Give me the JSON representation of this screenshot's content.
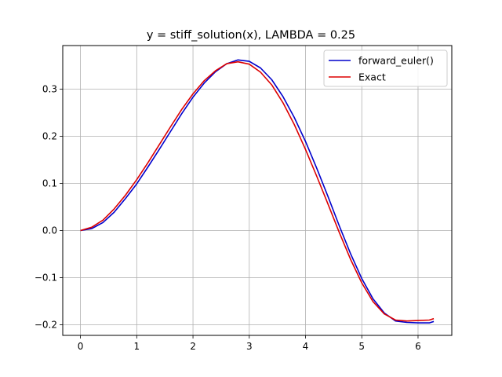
{
  "chart_data": {
    "type": "line",
    "title": "y = stiff_solution(x), LAMBDA = 0.25",
    "xlabel": "",
    "ylabel": "",
    "xlim": [
      -0.315,
      6.6
    ],
    "ylim": [
      -0.2225,
      0.3925
    ],
    "xticks": [
      0,
      1,
      2,
      3,
      4,
      5,
      6
    ],
    "xtick_labels": [
      "0",
      "1",
      "2",
      "3",
      "4",
      "5",
      "6"
    ],
    "yticks": [
      -0.2,
      -0.1,
      0.0,
      0.1,
      0.2,
      0.3
    ],
    "ytick_labels": [
      "−0.2",
      "−0.1",
      "0.0",
      "0.1",
      "0.2",
      "0.3"
    ],
    "grid": true,
    "legend_position": "upper right",
    "series": [
      {
        "name": "forward_euler()",
        "color": "#0000cc",
        "x": [
          0.0,
          0.2,
          0.4,
          0.6,
          0.8,
          1.0,
          1.2,
          1.4,
          1.6,
          1.8,
          2.0,
          2.2,
          2.4,
          2.6,
          2.8,
          3.0,
          3.2,
          3.4,
          3.6,
          3.8,
          4.0,
          4.2,
          4.4,
          4.6,
          4.8,
          5.0,
          5.2,
          5.4,
          5.6,
          5.8,
          6.0,
          6.2,
          6.28
        ],
        "y": [
          0.0,
          0.004,
          0.017,
          0.039,
          0.068,
          0.099,
          0.135,
          0.172,
          0.21,
          0.248,
          0.283,
          0.313,
          0.337,
          0.354,
          0.362,
          0.359,
          0.345,
          0.32,
          0.284,
          0.24,
          0.189,
          0.132,
          0.072,
          0.01,
          -0.049,
          -0.102,
          -0.145,
          -0.175,
          -0.192,
          -0.195,
          -0.196,
          -0.196,
          -0.193
        ]
      },
      {
        "name": "Exact",
        "color": "#dd0000",
        "x": [
          0.0,
          0.2,
          0.4,
          0.6,
          0.8,
          1.0,
          1.2,
          1.4,
          1.6,
          1.8,
          2.0,
          2.2,
          2.4,
          2.6,
          2.8,
          3.0,
          3.2,
          3.4,
          3.6,
          3.8,
          4.0,
          4.2,
          4.4,
          4.6,
          4.8,
          5.0,
          5.2,
          5.4,
          5.6,
          5.8,
          6.0,
          6.2,
          6.28
        ],
        "y": [
          0.0,
          0.007,
          0.022,
          0.046,
          0.075,
          0.108,
          0.144,
          0.182,
          0.22,
          0.257,
          0.29,
          0.318,
          0.339,
          0.354,
          0.358,
          0.353,
          0.336,
          0.309,
          0.271,
          0.225,
          0.172,
          0.115,
          0.056,
          -0.004,
          -0.061,
          -0.111,
          -0.151,
          -0.177,
          -0.19,
          -0.192,
          -0.191,
          -0.19,
          -0.187
        ]
      }
    ]
  }
}
